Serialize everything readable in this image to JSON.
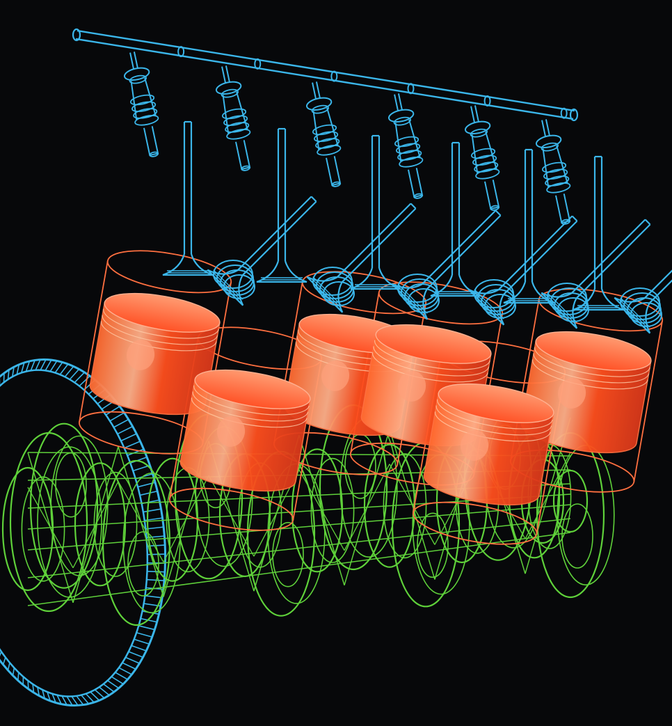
{
  "illustration": {
    "subject": "engine-cutaway-wireframe",
    "components": {
      "fuel_rail": {
        "injector_count": 6
      },
      "intake_valves": {
        "count": 6
      },
      "exhaust_valves": {
        "count": 6
      },
      "pistons": {
        "count": 6
      },
      "crankshaft": {
        "crank_throws": 6
      },
      "flywheel": {
        "ring_gear": true
      }
    },
    "colors": {
      "background": "#07080a",
      "fuel_system": "#3bb6ea",
      "valves": "#3bb6ea",
      "pistons": "#ff5a2a",
      "piston_outline": "#ff7040",
      "crankshaft": "#5fd13a",
      "flywheel": "#3bb6ea"
    }
  }
}
